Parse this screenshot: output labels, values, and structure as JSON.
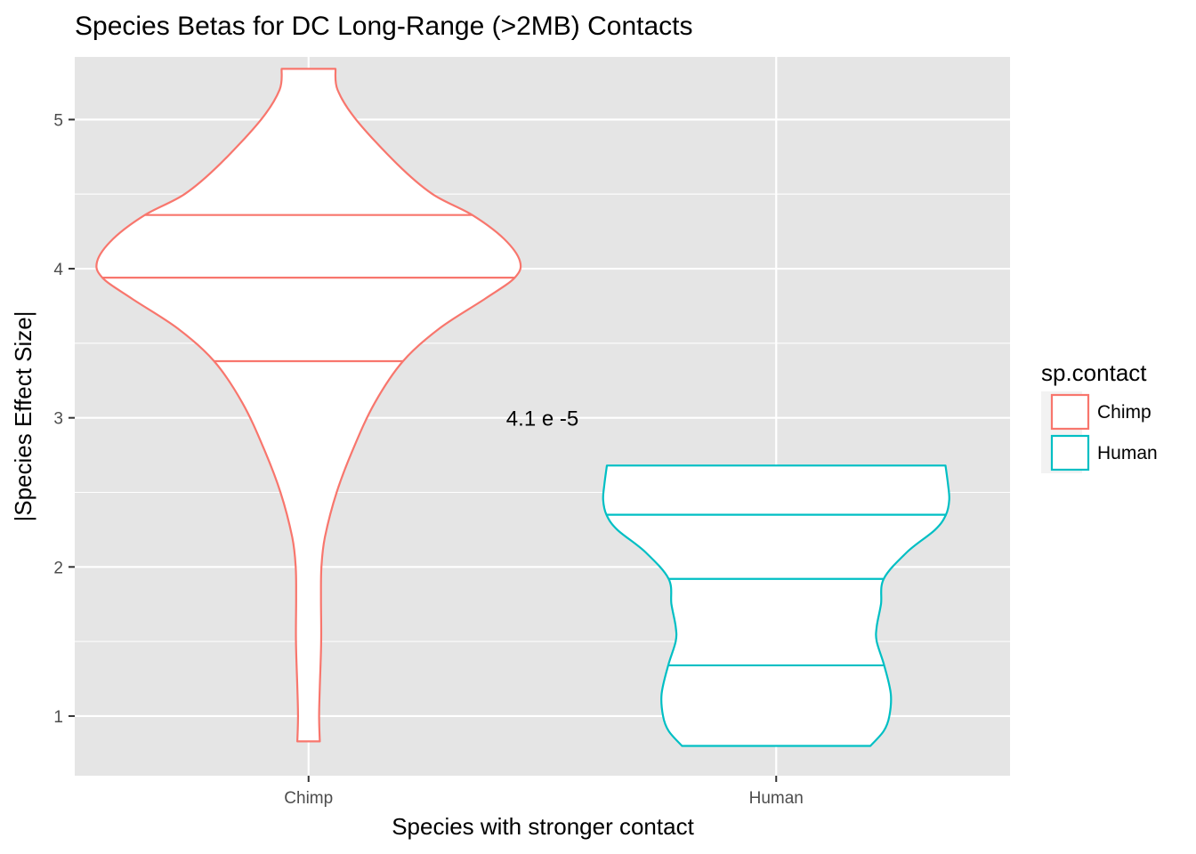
{
  "chart_data": {
    "type": "violin",
    "title": "Species Betas for DC Long-Range (>2MB) Contacts",
    "xlabel": "Species with stronger contact",
    "ylabel": "|Species Effect Size|",
    "categories": [
      "Chimp",
      "Human"
    ],
    "y_ticks": [
      1,
      2,
      3,
      4,
      5
    ],
    "y_tick_labels": [
      "1",
      "2",
      "3",
      "4",
      "5"
    ],
    "ylim": [
      0.6,
      5.42
    ],
    "grid": true,
    "panel_background": "#e5e5e5",
    "annotation": {
      "text": "4.1 e -5",
      "x": 1.5,
      "y": 3.0
    },
    "legend": {
      "title": "sp.contact",
      "position": "right",
      "entries": [
        {
          "label": "Chimp",
          "color": "#f8766d"
        },
        {
          "label": "Human",
          "color": "#00bfc4"
        }
      ]
    },
    "series": [
      {
        "name": "Chimp",
        "category": "Chimp",
        "color": "#f8766d",
        "ymin": 0.83,
        "ymax": 5.34,
        "quantiles": [
          3.38,
          3.94,
          4.36
        ],
        "density_profile": [
          [
            0.83,
            0.048
          ],
          [
            1.0,
            0.045
          ],
          [
            1.2,
            0.048
          ],
          [
            1.5,
            0.054
          ],
          [
            1.8,
            0.053
          ],
          [
            2.0,
            0.055
          ],
          [
            2.2,
            0.07
          ],
          [
            2.5,
            0.12
          ],
          [
            2.8,
            0.193
          ],
          [
            3.1,
            0.283
          ],
          [
            3.38,
            0.404
          ],
          [
            3.6,
            0.56
          ],
          [
            3.8,
            0.756
          ],
          [
            3.94,
            0.882
          ],
          [
            4.05,
            0.904
          ],
          [
            4.2,
            0.836
          ],
          [
            4.36,
            0.7
          ],
          [
            4.5,
            0.53
          ],
          [
            4.7,
            0.38
          ],
          [
            5.0,
            0.203
          ],
          [
            5.2,
            0.124
          ],
          [
            5.34,
            0.115
          ]
        ]
      },
      {
        "name": "Human",
        "category": "Human",
        "color": "#00bfc4",
        "ymin": 0.8,
        "ymax": 2.68,
        "quantiles": [
          1.34,
          1.92,
          2.35
        ],
        "density_profile": [
          [
            0.8,
            0.403
          ],
          [
            0.9,
            0.46
          ],
          [
            1.0,
            0.484
          ],
          [
            1.15,
            0.49
          ],
          [
            1.34,
            0.462
          ],
          [
            1.5,
            0.43
          ],
          [
            1.6,
            0.43
          ],
          [
            1.75,
            0.448
          ],
          [
            1.92,
            0.46
          ],
          [
            2.1,
            0.56
          ],
          [
            2.25,
            0.68
          ],
          [
            2.35,
            0.726
          ],
          [
            2.45,
            0.74
          ],
          [
            2.55,
            0.735
          ],
          [
            2.68,
            0.724
          ]
        ]
      }
    ]
  }
}
